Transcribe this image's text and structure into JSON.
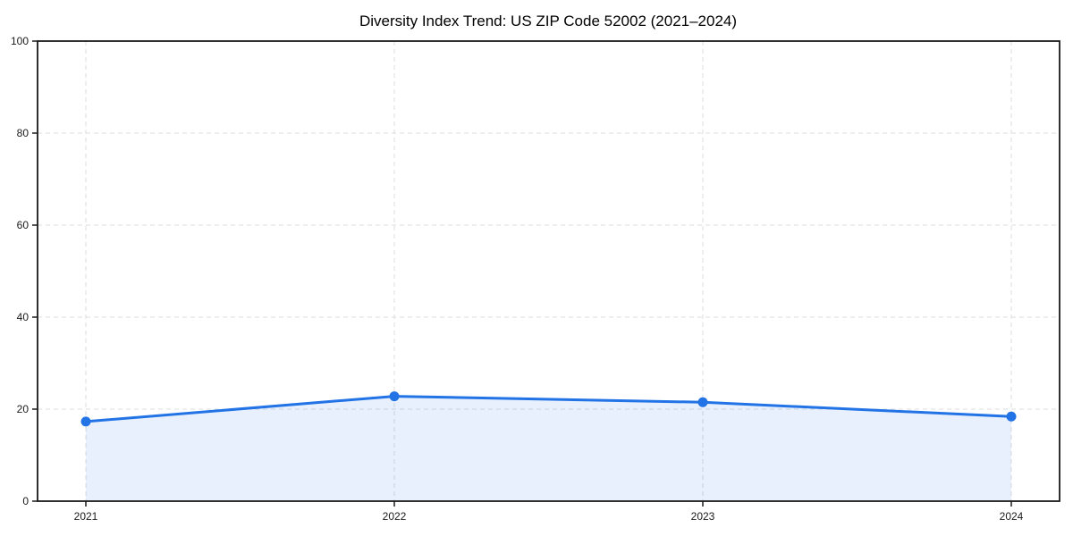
{
  "chart_data": {
    "type": "line",
    "title": "Diversity Index Trend: US ZIP Code 52002 (2021–2024)",
    "series_name": "Diversity Index",
    "categories": [
      "2021",
      "2022",
      "2023",
      "2024"
    ],
    "values": [
      17.3,
      22.8,
      21.5,
      18.4
    ],
    "xlabel": "",
    "ylabel": "",
    "ylim": [
      0,
      100
    ],
    "yticks": [
      0,
      20,
      40,
      60,
      80,
      100
    ],
    "grid": true,
    "grid_style": "dashed",
    "legend": "none",
    "area_fill": true,
    "markers": true,
    "colors": {
      "line": "#2273e6",
      "marker": "#2273e6",
      "fill": "rgba(34,115,230,0.11)",
      "grid": "#dddddd",
      "spine": "#1a1a1a",
      "tick_label": "#1a1a1a",
      "title": "#000000",
      "background": "#ffffff"
    }
  }
}
